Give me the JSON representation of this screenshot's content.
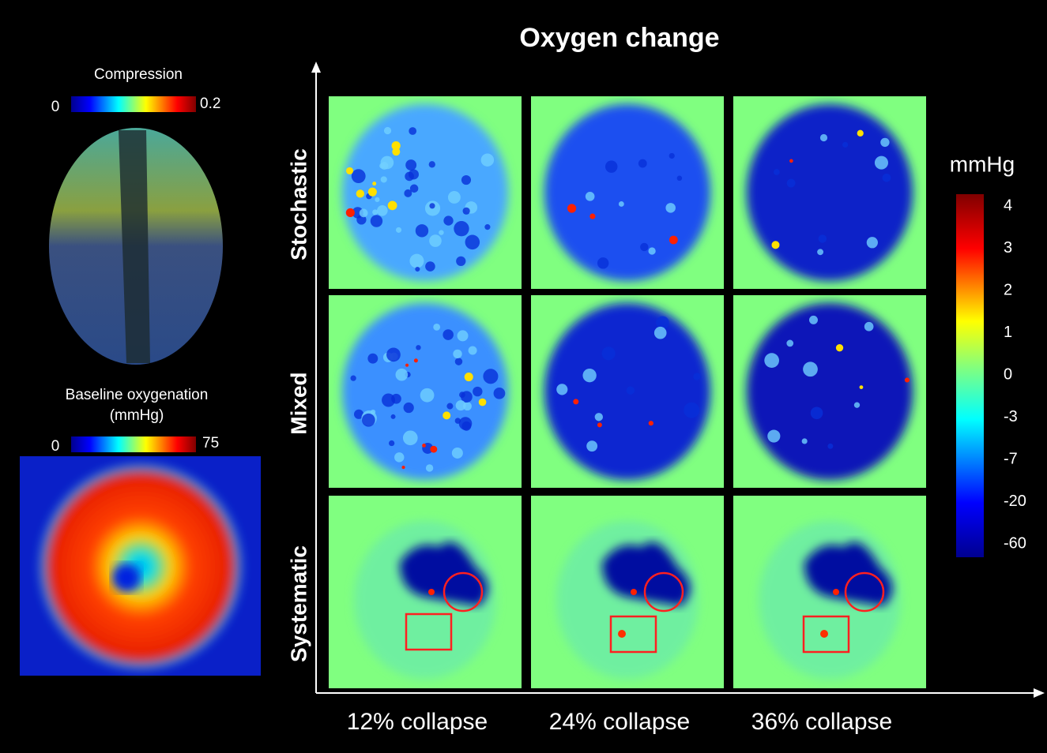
{
  "title": "Oxygen change",
  "compression": {
    "label": "Compression",
    "min": 0,
    "max": 0.2
  },
  "baseline": {
    "label": "Baseline oxygenation",
    "unit": "(mmHg)",
    "min": 0,
    "max": 75
  },
  "rows": [
    "Stochastic",
    "Mixed",
    "Systematic"
  ],
  "columns": [
    "12% collapse",
    "24% collapse",
    "36% collapse"
  ],
  "colorbar": {
    "unit": "mmHg",
    "ticks": [
      4,
      3,
      2,
      1,
      0,
      -3,
      -7,
      -20,
      -60
    ]
  }
}
